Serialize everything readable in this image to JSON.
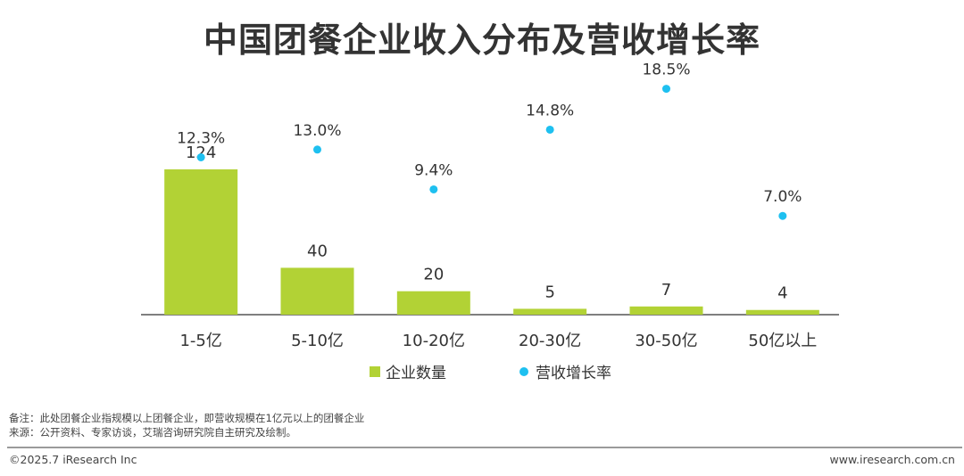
{
  "title": "中国团餐企业收入分布及营收增长率",
  "chart_data": {
    "type": "bar",
    "categories": [
      "1-5亿",
      "5-10亿",
      "10-20亿",
      "20-30亿",
      "30-50亿",
      "50亿以上"
    ],
    "series": [
      {
        "name": "企业数量",
        "type": "bar",
        "values": [
          124,
          40,
          20,
          5,
          7,
          4
        ],
        "labels": [
          "124",
          "40",
          "20",
          "5",
          "7",
          "4"
        ],
        "color": "#b2d235"
      },
      {
        "name": "营收增长率",
        "type": "scatter",
        "values": [
          12.3,
          13.0,
          9.4,
          14.8,
          18.5,
          7.0
        ],
        "labels": [
          "12.3%",
          "13.0%",
          "9.4%",
          "14.8%",
          "18.5%",
          "7.0%"
        ],
        "unit": "%",
        "color": "#1ec0f0"
      }
    ],
    "legend_position": "bottom",
    "grid": false
  },
  "notes": {
    "note1": "备注：此处团餐企业指规模以上团餐企业，即营收规模在1亿元以上的团餐企业",
    "note2": "来源：公开资料、专家访谈，艾瑞咨询研究院自主研究及绘制。"
  },
  "footer": {
    "copyright": "©2025.7 iResearch Inc",
    "website": "www.iresearch.com.cn"
  }
}
